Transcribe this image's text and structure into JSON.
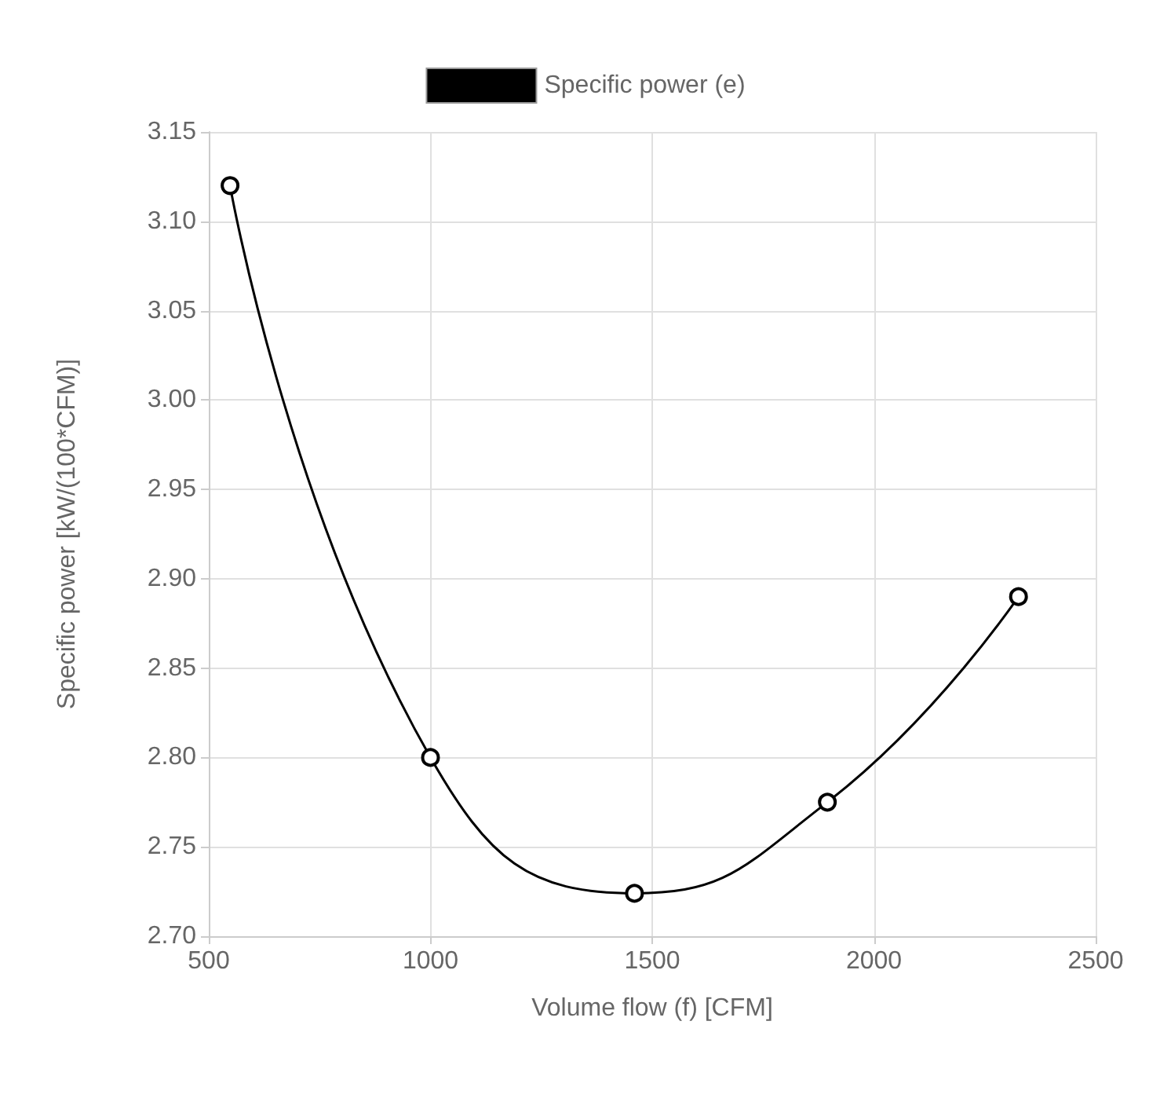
{
  "chart_data": {
    "type": "line",
    "xlabel": "Volume flow (f) [CFM]",
    "ylabel": "Specific power [kW/(100*CFM)]",
    "x": [
      548,
      1000,
      1460,
      1895,
      2326
    ],
    "series": [
      {
        "name": "Specific power (e)",
        "color": "#000000",
        "values": [
          3.12,
          2.8,
          2.724,
          2.775,
          2.89
        ]
      }
    ],
    "xlim": [
      500,
      2500
    ],
    "xticks": [
      500,
      1000,
      1500,
      2000,
      2500
    ],
    "ylim": [
      2.7,
      3.15
    ],
    "yticks": [
      {
        "value": 2.7,
        "label": "2.70"
      },
      {
        "value": 2.75,
        "label": "2.75"
      },
      {
        "value": 2.8,
        "label": "2.80"
      },
      {
        "value": 2.85,
        "label": "2.85"
      },
      {
        "value": 2.9,
        "label": "2.90"
      },
      {
        "value": 2.95,
        "label": "2.95"
      },
      {
        "value": 3.0,
        "label": "3.00"
      },
      {
        "value": 3.05,
        "label": "3.05"
      },
      {
        "value": 3.1,
        "label": "3.10"
      },
      {
        "value": 3.15,
        "label": "3.15"
      }
    ],
    "grid": true,
    "legend": "top",
    "marker": "circle",
    "line_style": "solid"
  }
}
